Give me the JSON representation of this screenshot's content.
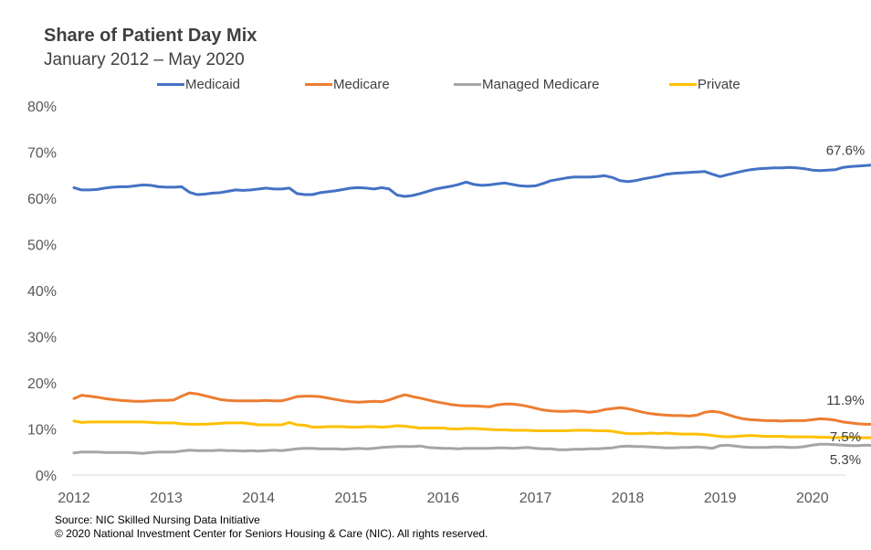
{
  "chart_data": {
    "type": "line",
    "title": "Share of Patient Day Mix",
    "subtitle": "January  2012 – May 2020",
    "x_ticks": [
      "2012",
      "2013",
      "2014",
      "2015",
      "2016",
      "2017",
      "2018",
      "2019",
      "2020"
    ],
    "x_start": "2012-01",
    "y_ticks": [
      "0%",
      "10%",
      "20%",
      "30%",
      "40%",
      "50%",
      "60%",
      "70%",
      "80%"
    ],
    "ylim": [
      0,
      80
    ],
    "grid": false,
    "legend_position": "top",
    "series": [
      {
        "name": "Medicaid",
        "color": "#4472C4",
        "end_label": "67.6%",
        "values": [
          62.3,
          61.8,
          61.8,
          61.9,
          62.2,
          62.4,
          62.5,
          62.5,
          62.7,
          62.9,
          62.8,
          62.5,
          62.4,
          62.4,
          62.5,
          61.3,
          60.8,
          60.9,
          61.1,
          61.2,
          61.5,
          61.8,
          61.7,
          61.8,
          62.0,
          62.2,
          62.0,
          62.0,
          62.2,
          61.0,
          60.8,
          60.8,
          61.2,
          61.4,
          61.6,
          61.9,
          62.2,
          62.3,
          62.2,
          62.0,
          62.3,
          62.0,
          60.7,
          60.4,
          60.6,
          61.0,
          61.5,
          62.0,
          62.3,
          62.6,
          63.0,
          63.5,
          63.0,
          62.8,
          62.9,
          63.1,
          63.3,
          63.0,
          62.7,
          62.6,
          62.7,
          63.2,
          63.8,
          64.1,
          64.4,
          64.6,
          64.6,
          64.6,
          64.7,
          64.9,
          64.5,
          63.8,
          63.6,
          63.8,
          64.2,
          64.5,
          64.8,
          65.2,
          65.4,
          65.5,
          65.6,
          65.7,
          65.8,
          65.2,
          64.7,
          65.1,
          65.5,
          65.9,
          66.2,
          66.4,
          66.5,
          66.6,
          66.6,
          66.7,
          66.6,
          66.4,
          66.1,
          66.0,
          66.1,
          66.2,
          66.7,
          66.9,
          67.0,
          67.1,
          67.2,
          67.2,
          67.1,
          67.0,
          67.0,
          66.9,
          66.6,
          66.4,
          67.1,
          67.7,
          67.6
        ]
      },
      {
        "name": "Medicare",
        "color": "#ED7D31",
        "end_label": "11.9%",
        "values": [
          16.6,
          17.3,
          17.1,
          16.9,
          16.6,
          16.4,
          16.2,
          16.1,
          16.0,
          16.0,
          16.1,
          16.2,
          16.2,
          16.3,
          17.1,
          17.8,
          17.6,
          17.2,
          16.8,
          16.4,
          16.2,
          16.1,
          16.1,
          16.1,
          16.1,
          16.2,
          16.1,
          16.1,
          16.5,
          17.0,
          17.1,
          17.1,
          17.0,
          16.7,
          16.4,
          16.1,
          15.9,
          15.8,
          15.9,
          16.0,
          15.9,
          16.3,
          16.9,
          17.4,
          17.0,
          16.7,
          16.3,
          15.9,
          15.6,
          15.3,
          15.1,
          15.0,
          15.0,
          14.9,
          14.8,
          15.2,
          15.4,
          15.4,
          15.2,
          14.9,
          14.5,
          14.1,
          13.9,
          13.8,
          13.8,
          13.9,
          13.8,
          13.6,
          13.8,
          14.2,
          14.4,
          14.6,
          14.4,
          14.0,
          13.6,
          13.3,
          13.1,
          13.0,
          12.9,
          12.9,
          12.8,
          13.0,
          13.6,
          13.8,
          13.6,
          13.1,
          12.6,
          12.2,
          12.0,
          11.9,
          11.8,
          11.8,
          11.7,
          11.8,
          11.8,
          11.8,
          12.0,
          12.2,
          12.1,
          11.9,
          11.5,
          11.3,
          11.1,
          11.0,
          11.0,
          11.0,
          11.0,
          11.0,
          11.0,
          11.1,
          11.2,
          11.4,
          11.3,
          11.2,
          11.1,
          11.9
        ]
      },
      {
        "name": "Managed Medicare",
        "color": "#A5A5A5",
        "end_label": "5.3%",
        "values": [
          4.8,
          5.0,
          5.0,
          5.0,
          4.9,
          4.9,
          4.9,
          4.9,
          4.8,
          4.7,
          4.9,
          5.0,
          5.0,
          5.0,
          5.2,
          5.4,
          5.3,
          5.3,
          5.3,
          5.4,
          5.3,
          5.3,
          5.2,
          5.3,
          5.2,
          5.3,
          5.4,
          5.3,
          5.5,
          5.7,
          5.8,
          5.8,
          5.7,
          5.7,
          5.7,
          5.6,
          5.7,
          5.8,
          5.7,
          5.8,
          6.0,
          6.1,
          6.2,
          6.2,
          6.2,
          6.3,
          6.0,
          5.9,
          5.8,
          5.8,
          5.7,
          5.8,
          5.8,
          5.8,
          5.8,
          5.9,
          5.9,
          5.8,
          5.9,
          6.0,
          5.8,
          5.7,
          5.7,
          5.5,
          5.5,
          5.6,
          5.6,
          5.7,
          5.7,
          5.8,
          5.9,
          6.2,
          6.3,
          6.2,
          6.2,
          6.1,
          6.0,
          5.9,
          5.9,
          6.0,
          6.0,
          6.1,
          6.0,
          5.8,
          6.4,
          6.5,
          6.3,
          6.1,
          6.0,
          6.0,
          6.0,
          6.1,
          6.1,
          6.0,
          6.0,
          6.2,
          6.5,
          6.7,
          6.7,
          6.6,
          6.5,
          6.4,
          6.4,
          6.5,
          6.4,
          6.3,
          6.2,
          6.3,
          6.3,
          6.5,
          6.7,
          6.9,
          6.8,
          6.2,
          5.5,
          5.3
        ]
      },
      {
        "name": "Private",
        "color": "#FFC000",
        "end_label": "7.5%",
        "values": [
          11.7,
          11.4,
          11.5,
          11.5,
          11.5,
          11.5,
          11.5,
          11.5,
          11.5,
          11.5,
          11.4,
          11.3,
          11.3,
          11.3,
          11.1,
          11.0,
          11.0,
          11.0,
          11.1,
          11.2,
          11.3,
          11.3,
          11.3,
          11.1,
          10.9,
          10.9,
          10.9,
          10.9,
          11.4,
          10.9,
          10.8,
          10.4,
          10.4,
          10.5,
          10.5,
          10.5,
          10.4,
          10.4,
          10.5,
          10.5,
          10.4,
          10.5,
          10.7,
          10.6,
          10.4,
          10.2,
          10.2,
          10.2,
          10.2,
          10.0,
          10.0,
          10.1,
          10.1,
          10.0,
          9.9,
          9.8,
          9.8,
          9.7,
          9.7,
          9.7,
          9.6,
          9.6,
          9.6,
          9.6,
          9.6,
          9.7,
          9.7,
          9.7,
          9.6,
          9.6,
          9.5,
          9.2,
          9.0,
          9.0,
          9.0,
          9.1,
          9.0,
          9.1,
          9.0,
          8.9,
          8.9,
          8.9,
          8.8,
          8.6,
          8.4,
          8.3,
          8.4,
          8.5,
          8.6,
          8.5,
          8.4,
          8.4,
          8.4,
          8.3,
          8.3,
          8.3,
          8.3,
          8.2,
          8.2,
          8.1,
          8.2,
          8.2,
          8.1,
          8.1,
          8.1,
          8.1,
          8.1,
          8.1,
          8.1,
          8.1,
          7.9,
          7.8,
          7.8,
          7.9,
          7.7,
          7.5
        ]
      }
    ]
  },
  "source": {
    "line1": "Source: NIC Skilled Nursing Data Initiative",
    "line2": "© 2020 National Investment Center for Seniors Housing & Care (NIC).  All rights reserved."
  }
}
